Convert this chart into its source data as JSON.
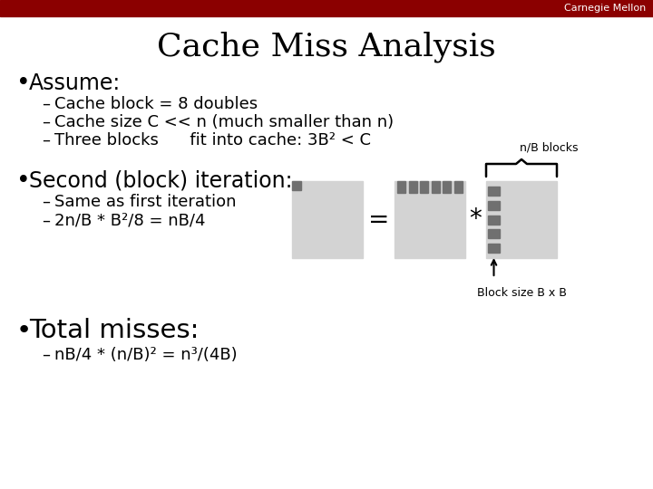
{
  "title": "Cache Miss Analysis",
  "bg_color": "#ffffff",
  "header_color": "#8B0000",
  "header_text": "Carnegie Mellon",
  "header_text_color": "#ffffff",
  "bullet1": "Assume:",
  "sub1a": "Cache block = 8 doubles",
  "sub1b": "Cache size C << n (much smaller than n)",
  "sub1c": "Three blocks      fit into cache: 3B² < C",
  "bullet2": "Second (block) iteration:",
  "sub2a": "Same as first iteration",
  "sub2b": "2n/B * B²/8 = nB/4",
  "eq_sign": "=",
  "mult_sign": "*",
  "bullet3": "Total misses:",
  "sub3a": "nB/4 * (n/B)² = n³/(4B)",
  "nbblocks_label": "n/B blocks",
  "blocksize_label": "Block size B x B",
  "light_gray": "#d3d3d3",
  "dark_gray": "#707070",
  "title_fontsize": 26,
  "header_fontsize": 8,
  "bullet_fontsize": 17,
  "sub_fontsize": 13,
  "label_fontsize": 9
}
